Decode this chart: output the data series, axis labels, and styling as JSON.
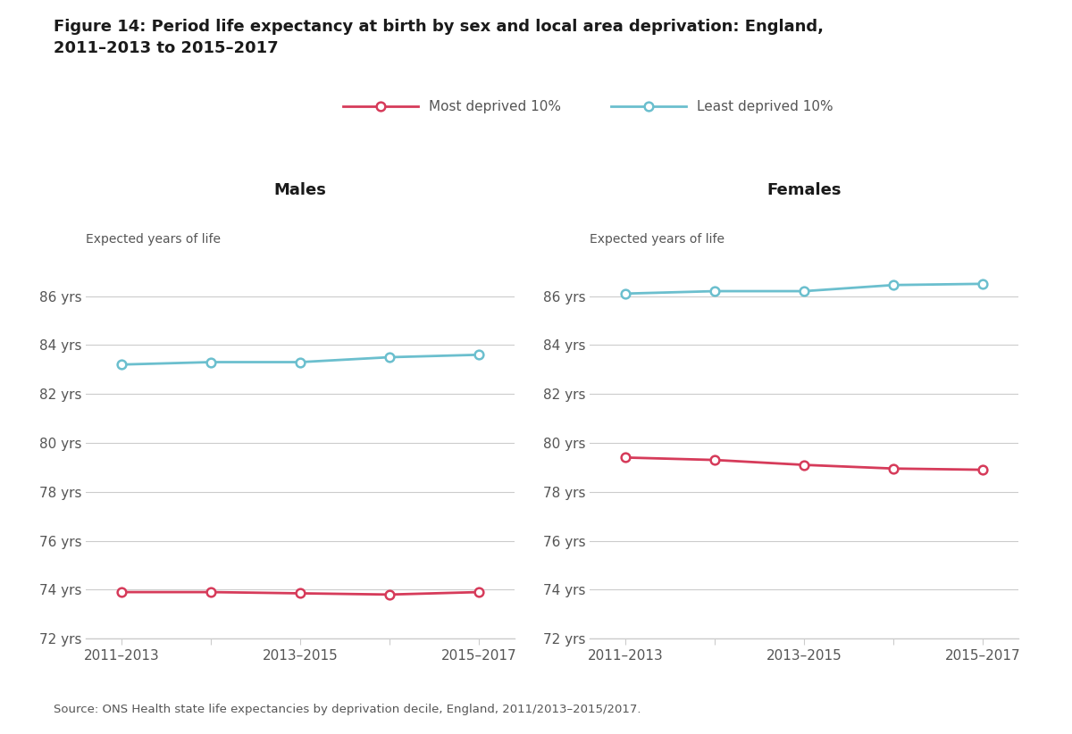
{
  "title_line1": "Figure 14: Period life expectancy at birth by sex and local area deprivation: England,",
  "title_line2": "2011–2013 to 2015–2017",
  "source": "Source: ONS Health state life expectancies by deprivation decile, England, 2011/2013–2015/2017.",
  "x_labels": [
    "2011–2013",
    "",
    "2013–2015",
    "",
    "2015–2017"
  ],
  "x_values": [
    0,
    1,
    2,
    3,
    4
  ],
  "males_most_deprived": [
    73.9,
    73.9,
    73.85,
    73.8,
    73.9
  ],
  "males_least_deprived": [
    83.2,
    83.3,
    83.3,
    83.5,
    83.6
  ],
  "females_most_deprived": [
    79.4,
    79.3,
    79.1,
    78.95,
    78.9
  ],
  "females_least_deprived": [
    86.1,
    86.2,
    86.2,
    86.45,
    86.5
  ],
  "ylim": [
    72,
    87
  ],
  "yticks": [
    72,
    74,
    76,
    78,
    80,
    82,
    84,
    86
  ],
  "color_most_deprived": "#d63b5a",
  "color_least_deprived": "#6bbfce",
  "legend_most_deprived": "Most deprived 10%",
  "legend_least_deprived": "Least deprived 10%",
  "males_title": "Males",
  "females_title": "Females",
  "ylabel": "Expected years of life",
  "background_color": "#ffffff",
  "grid_color": "#cccccc",
  "text_color": "#555555",
  "title_color": "#1a1a1a"
}
